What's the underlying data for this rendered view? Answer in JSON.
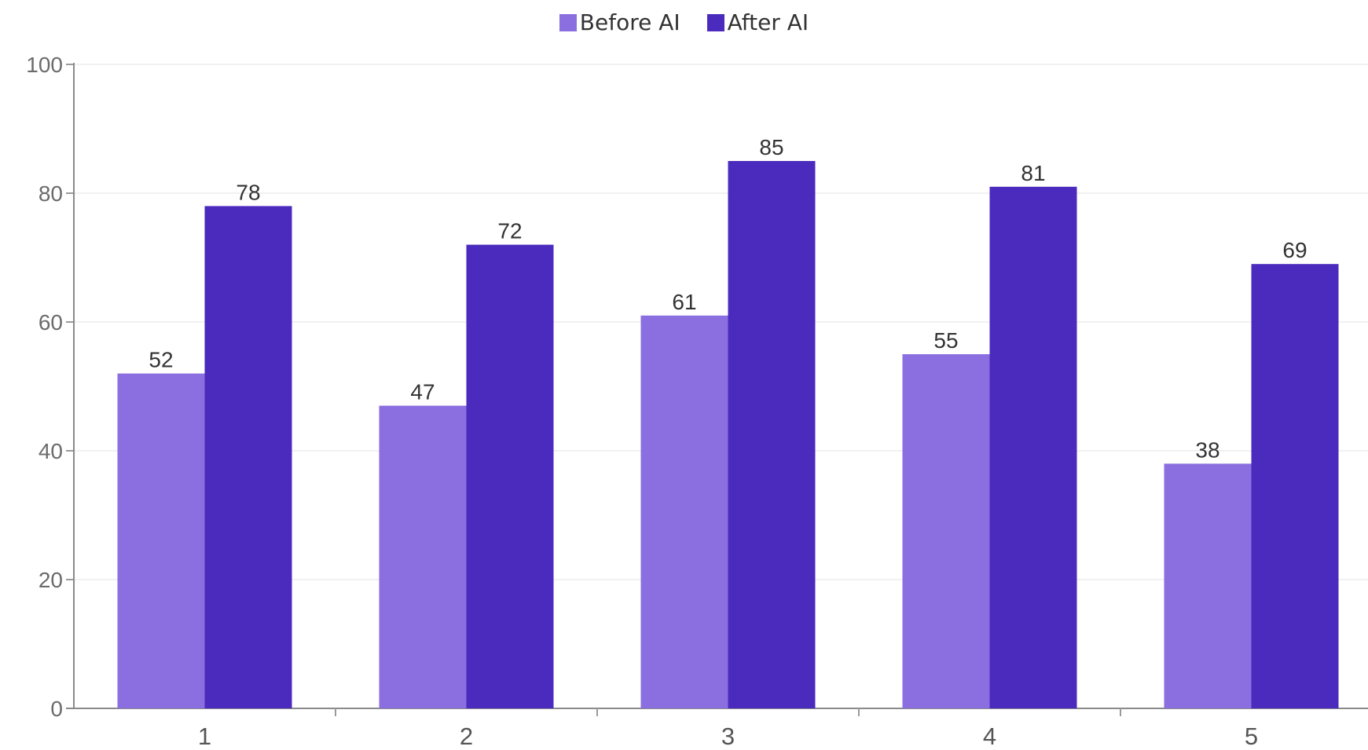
{
  "chart_data": {
    "type": "bar",
    "categories": [
      "1",
      "2",
      "3",
      "4",
      "5"
    ],
    "series": [
      {
        "name": "Before AI",
        "values": [
          52,
          47,
          61,
          55,
          38
        ],
        "color": "#8b6fe0"
      },
      {
        "name": "After AI",
        "values": [
          78,
          72,
          85,
          81,
          69
        ],
        "color": "#4b2bbd"
      }
    ],
    "ylim": [
      0,
      100
    ],
    "yticks": [
      0,
      20,
      40,
      60,
      80,
      100
    ],
    "xlabel": "",
    "ylabel": "",
    "title": "",
    "grid": true,
    "legend": "top-center",
    "data_labels": true
  }
}
